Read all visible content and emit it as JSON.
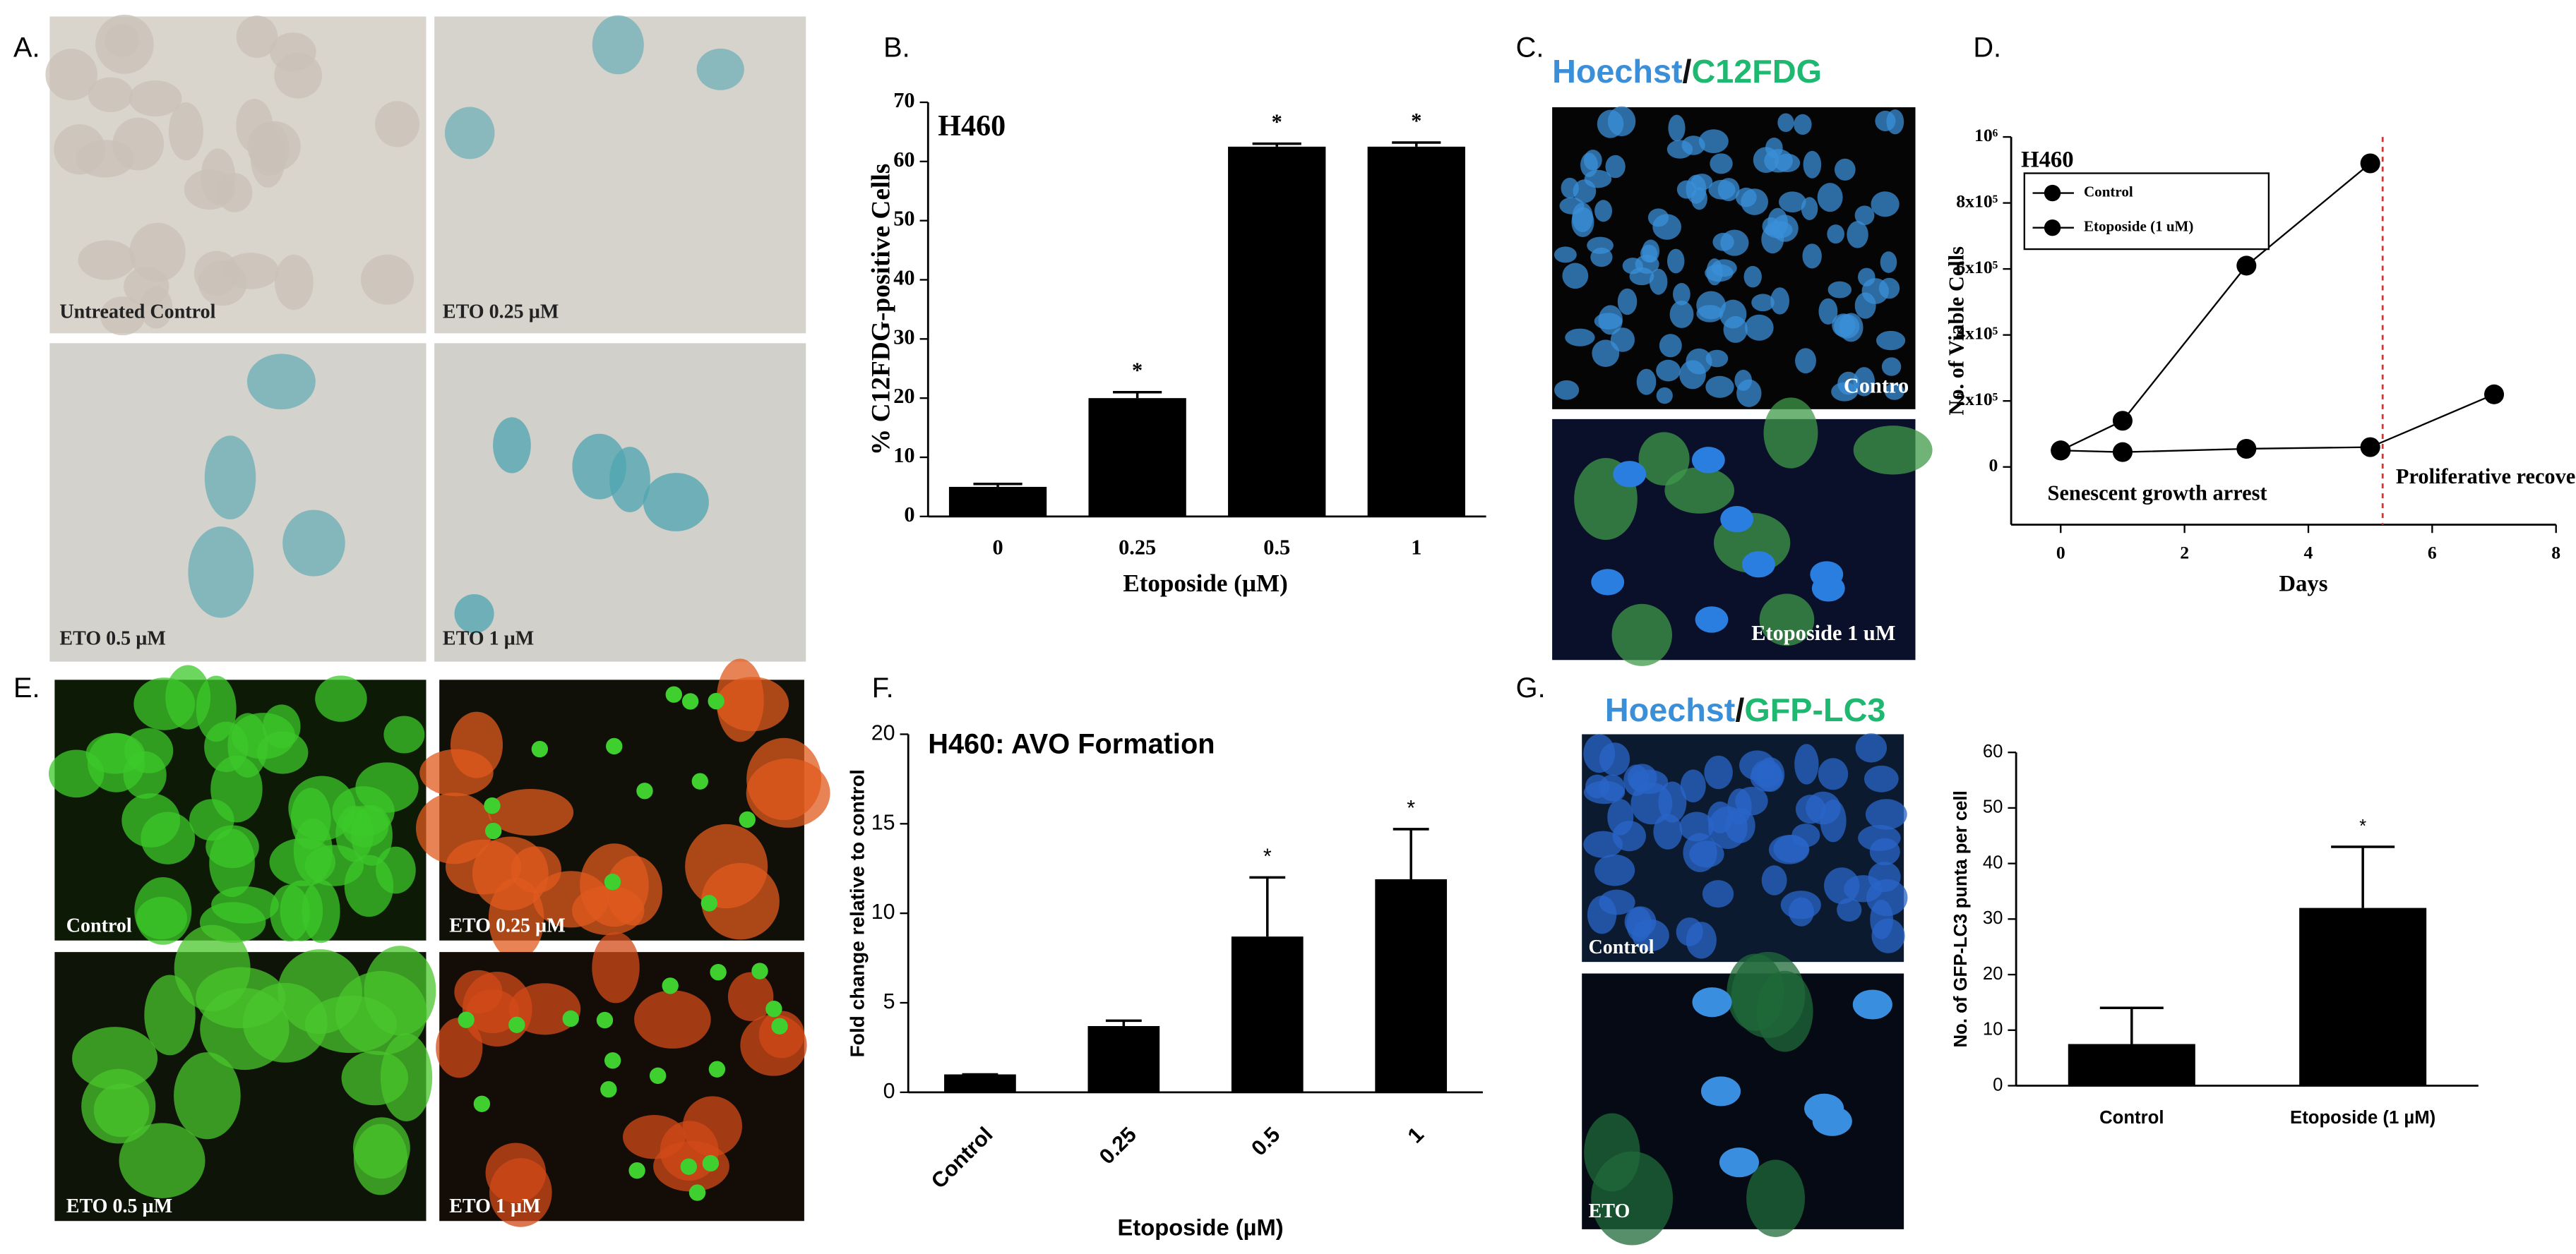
{
  "figure": {
    "A": {
      "label": "A.",
      "captions": [
        "Untreated Control",
        "ETO 0.25 µM",
        "ETO 0.5 µM",
        "ETO 1 µM"
      ]
    },
    "B": {
      "label": "B."
    },
    "C": {
      "label": "C.",
      "header": [
        "Hoechst",
        "/",
        "C12FDG"
      ],
      "captions": [
        "Contro",
        "Etoposide 1 uM"
      ]
    },
    "D": {
      "label": "D."
    },
    "E": {
      "label": "E.",
      "captions": [
        "Control",
        "ETO 0.25 µM",
        "ETO 0.5 µM",
        "ETO 1  µM"
      ]
    },
    "F": {
      "label": "F."
    },
    "G": {
      "label": "G.",
      "header": [
        "Hoechst",
        "/",
        "GFP-LC3"
      ],
      "captions": [
        "Control",
        "ETO"
      ]
    }
  },
  "chart_data": [
    {
      "type": "bar",
      "title": "H460",
      "y_label": "% C12FDG-positive Cells",
      "x_label": "Etoposide (µM)",
      "categories": [
        "0",
        "0.25",
        "0.5",
        "1"
      ],
      "values": [
        5,
        20,
        62.5,
        62.5
      ],
      "errors": [
        0.5,
        1,
        0.5,
        0.7
      ],
      "significance": [
        null,
        "*",
        "*",
        "*"
      ],
      "color": "#000000",
      "ylim": [
        0,
        70
      ],
      "yticks": [
        0,
        10,
        20,
        30,
        40,
        50,
        60,
        70
      ]
    },
    {
      "type": "line",
      "title": "H460",
      "y_label": "No. of Viable Cells",
      "x_label": "Days",
      "legend": "upper left",
      "series": [
        {
          "name": "Control",
          "color": "#000000",
          "x": [
            0,
            1,
            3,
            5
          ],
          "values": [
            50000,
            140000,
            610000,
            920000
          ]
        },
        {
          "name": "Etoposide (1 uM)",
          "color": "#000000",
          "x": [
            0,
            1,
            3,
            5,
            7
          ],
          "values": [
            50000,
            45000,
            55000,
            60000,
            220000
          ]
        }
      ],
      "vline": 5.2,
      "vline_color": "#e03030",
      "annotations": [
        "Senescent growth arrest",
        "Proliferative recovery"
      ],
      "xlim": [
        -0.8,
        8
      ],
      "xticks": [
        0,
        2,
        4,
        6,
        8
      ],
      "ylim": [
        -175000,
        1000000
      ],
      "yticks": [
        0,
        {
          "value": 200000,
          "label": "2x10⁵"
        },
        {
          "value": 400000,
          "label": "4x10⁵"
        },
        {
          "value": 600000,
          "label": "6x10⁵"
        },
        {
          "value": 800000,
          "label": "8x10⁵"
        },
        {
          "value": 1000000,
          "label": "10⁶"
        }
      ]
    },
    {
      "type": "bar",
      "title": "H460: AVO Formation",
      "y_label": "Fold change relative to control",
      "x_label": "Etoposide (µM)",
      "categories": [
        "Control",
        "0.25",
        "0.5",
        "1"
      ],
      "values": [
        1,
        3.7,
        8.7,
        11.9
      ],
      "errors": [
        0,
        0.3,
        3.3,
        2.8
      ],
      "significance": [
        null,
        null,
        "*",
        "*"
      ],
      "color": "#000000",
      "ylim": [
        0,
        20
      ],
      "yticks": [
        0,
        5,
        10,
        15,
        20
      ]
    },
    {
      "type": "bar",
      "y_label": "No. of GFP-LC3 punta per cell",
      "categories": [
        "Control",
        "Etoposide (1 µM)"
      ],
      "values": [
        7.5,
        32
      ],
      "errors": [
        6.5,
        11
      ],
      "significance": [
        null,
        "*"
      ],
      "color": "#000000",
      "ylim": [
        0,
        60
      ],
      "yticks": [
        0,
        10,
        20,
        30,
        40,
        50,
        60
      ]
    }
  ]
}
